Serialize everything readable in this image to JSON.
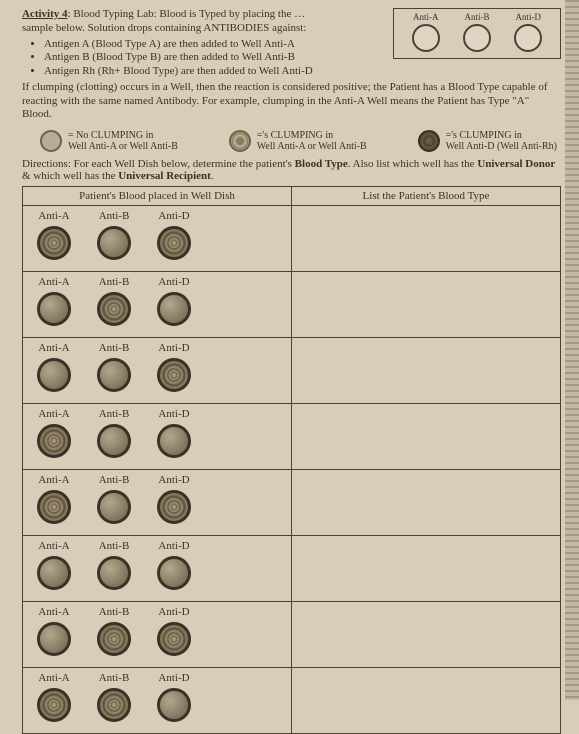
{
  "header": {
    "activity_label": "Activity 4",
    "activity_title": ": Blood Typing Lab: Blood is Typed by placing the …",
    "line1": "sample below. Solution drops containing ANTIBODIES against:",
    "bullets": [
      "Antigen A (Blood Type A) are then added to Well Anti-A",
      "Antigen B (Blood Type B) are then added to Well Anti-B",
      "Antigen Rh (Rh+ Blood Type) are then added to Well Anti-D"
    ],
    "explain": "If clumping (clotting) occurs in a Well, then the reaction is considered positive; the Patient has a Blood Type capable of reacting with the same named Antibody. For example, clumping in the Anti-A Well means the Patient has Type \"A\" Blood."
  },
  "legend": {
    "labels": [
      "Anti-A",
      "Anti-B",
      "Anti-D"
    ]
  },
  "clumping": {
    "none_l1": "= No CLUMPING in",
    "none_l2": "Well Anti-A or Well Anti-B",
    "some_l1": "='s CLUMPING in",
    "some_l2": "Well Anti-A or Well Anti-B",
    "full_l1": "='s CLUMPING in",
    "full_l2": "Well Anti-D (Well Anti-Rh)"
  },
  "directions": {
    "pre": "Directions: For each Well Dish below, determine the patient's ",
    "bold1": "Blood Type",
    "mid": ". Also list which well has the ",
    "bold2": "Universal Donor",
    "mid2": " & which well has the ",
    "bold3": "Universal Recipient",
    "post": "."
  },
  "table": {
    "col1": "Patient's Blood placed in Well Dish",
    "col2": "List the Patient's Blood Type",
    "well_labels": [
      "Anti-A",
      "Anti-B",
      "Anti-D"
    ],
    "rows": [
      {
        "wells": [
          "pos",
          "neg",
          "pos"
        ]
      },
      {
        "wells": [
          "neg",
          "pos",
          "neg"
        ]
      },
      {
        "wells": [
          "neg",
          "neg",
          "pos"
        ]
      },
      {
        "wells": [
          "pos",
          "neg",
          "neg"
        ]
      },
      {
        "wells": [
          "pos",
          "neg",
          "pos"
        ]
      },
      {
        "wells": [
          "neg",
          "neg",
          "neg"
        ]
      },
      {
        "wells": [
          "neg",
          "pos",
          "pos"
        ]
      },
      {
        "wells": [
          "pos",
          "pos",
          "neg"
        ]
      }
    ]
  }
}
